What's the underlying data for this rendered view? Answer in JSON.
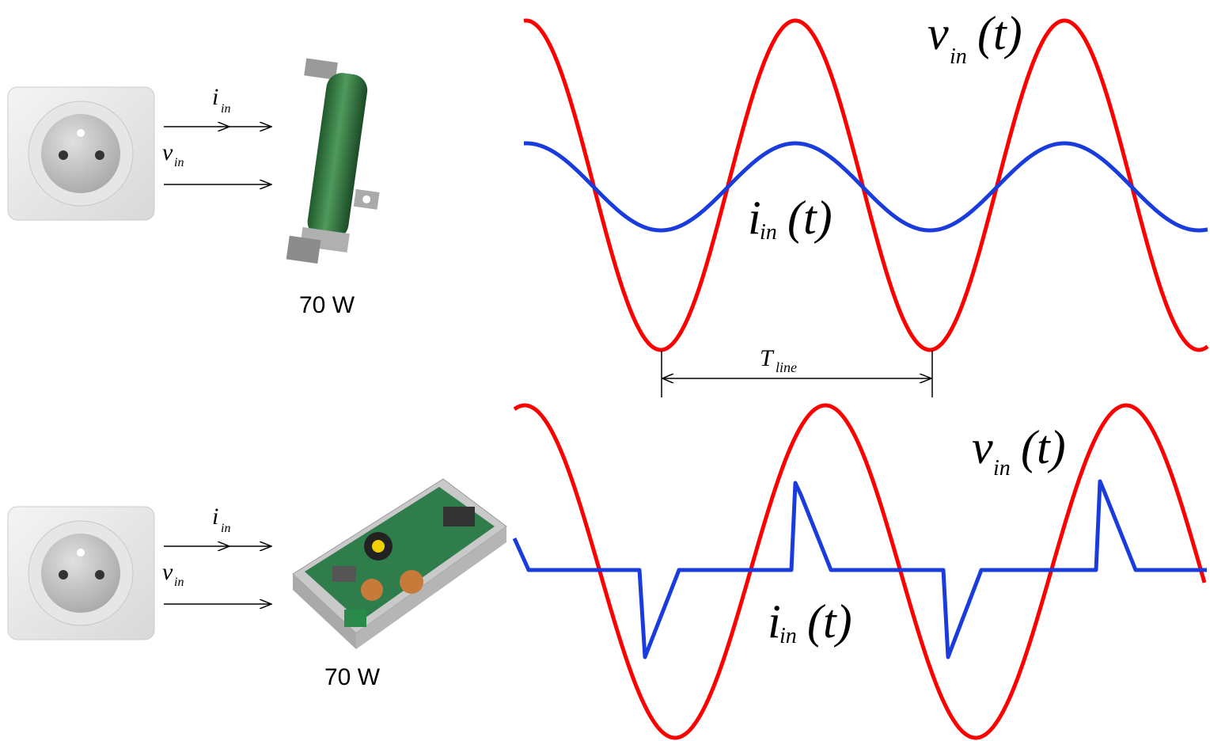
{
  "top": {
    "arrows": {
      "current": {
        "symbol": "i",
        "subscript": "in"
      },
      "voltage": {
        "symbol": "v",
        "subscript": "in"
      }
    },
    "load_rating": "70 W",
    "voltage_wave": {
      "symbol": "v",
      "subscript": "in",
      "argument": "(t)"
    },
    "current_wave": {
      "symbol": "i",
      "subscript": "in",
      "argument": "(t)"
    },
    "period": {
      "symbol": "T",
      "subscript": "line"
    }
  },
  "bottom": {
    "arrows": {
      "current": {
        "symbol": "i",
        "subscript": "in"
      },
      "voltage": {
        "symbol": "v",
        "subscript": "in"
      }
    },
    "load_rating": "70 W",
    "voltage_wave": {
      "symbol": "v",
      "subscript": "in",
      "argument": "(t)"
    },
    "current_wave": {
      "symbol": "i",
      "subscript": "in",
      "argument": "(t)"
    }
  }
}
